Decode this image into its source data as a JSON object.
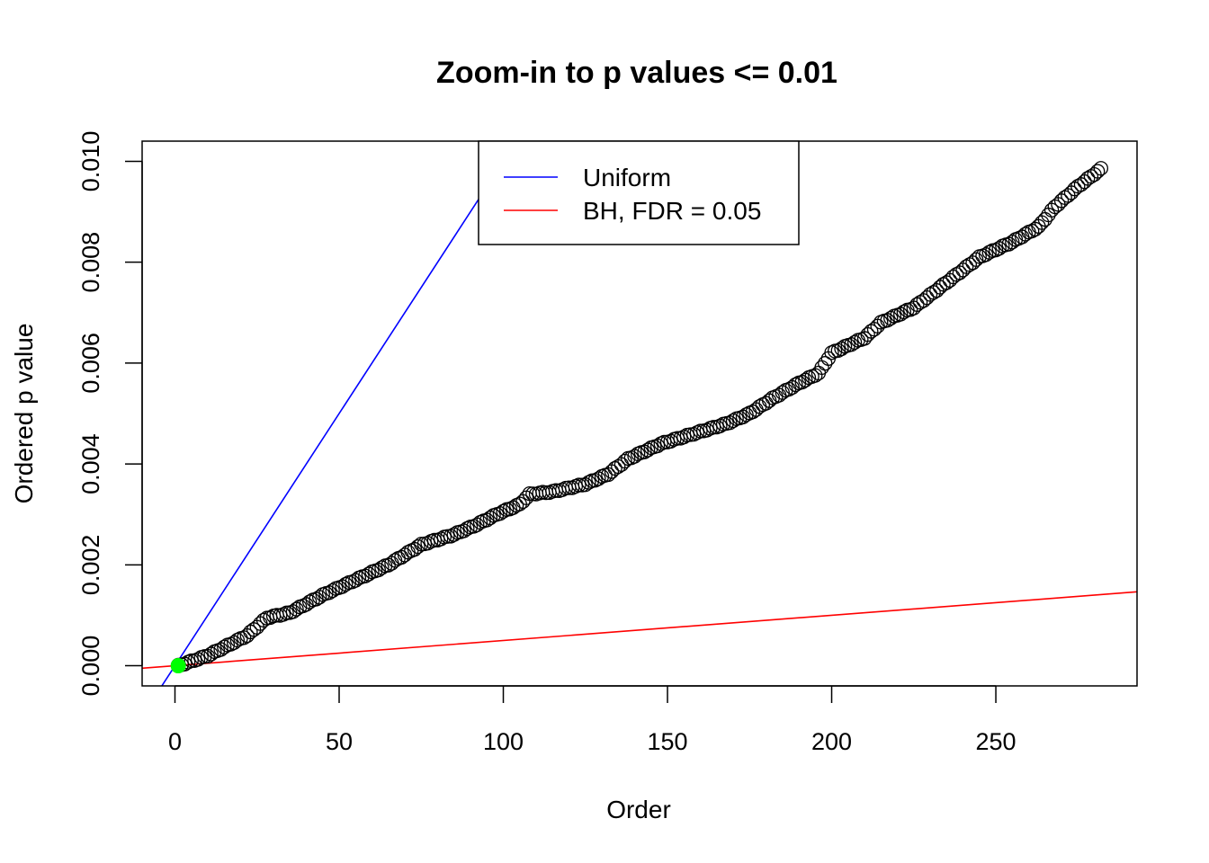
{
  "chart_data": {
    "type": "scatter",
    "title": "Zoom-in to p values <= 0.01",
    "xlabel": "Order",
    "ylabel": "Ordered p value",
    "xlim": [
      -10,
      293
    ],
    "ylim": [
      -0.0004,
      0.0104
    ],
    "x_ticks": [
      0,
      50,
      100,
      150,
      200,
      250
    ],
    "x_tick_labels": [
      "0",
      "50",
      "100",
      "150",
      "200",
      "250"
    ],
    "y_ticks": [
      0.0,
      0.002,
      0.004,
      0.006,
      0.008,
      0.01
    ],
    "y_tick_labels": [
      "0.000",
      "0.002",
      "0.004",
      "0.006",
      "0.008",
      "0.010"
    ],
    "grid": false,
    "legend": {
      "position": "top-center",
      "entries": [
        {
          "name": "Uniform",
          "color": "#0000ff"
        },
        {
          "name": "BH, FDR = 0.05",
          "color": "#ff0000"
        }
      ]
    },
    "reference_lines": [
      {
        "name": "Uniform",
        "color": "#0000ff",
        "intercept": 0.0,
        "slope": 0.0001
      },
      {
        "name": "BH, FDR = 0.05",
        "color": "#ff0000",
        "intercept": 0.0,
        "slope": 5e-06
      }
    ],
    "highlighted_point": {
      "x": 1,
      "y": 0.0,
      "color": "#00ff00"
    },
    "point_style": {
      "shape": "open-circle",
      "color": "#000000",
      "n": 282
    },
    "curve_knots": [
      {
        "x": 1,
        "y": 0.0
      },
      {
        "x": 10,
        "y": 0.0002
      },
      {
        "x": 16,
        "y": 0.0004
      },
      {
        "x": 22,
        "y": 0.0006
      },
      {
        "x": 28,
        "y": 0.00095
      },
      {
        "x": 35,
        "y": 0.00105
      },
      {
        "x": 45,
        "y": 0.0014
      },
      {
        "x": 55,
        "y": 0.0017
      },
      {
        "x": 65,
        "y": 0.002
      },
      {
        "x": 75,
        "y": 0.0024
      },
      {
        "x": 85,
        "y": 0.0026
      },
      {
        "x": 92,
        "y": 0.0028
      },
      {
        "x": 98,
        "y": 0.003
      },
      {
        "x": 105,
        "y": 0.0032
      },
      {
        "x": 108,
        "y": 0.0034
      },
      {
        "x": 115,
        "y": 0.00345
      },
      {
        "x": 125,
        "y": 0.0036
      },
      {
        "x": 132,
        "y": 0.0038
      },
      {
        "x": 138,
        "y": 0.0041
      },
      {
        "x": 148,
        "y": 0.0044
      },
      {
        "x": 158,
        "y": 0.0046
      },
      {
        "x": 168,
        "y": 0.0048
      },
      {
        "x": 175,
        "y": 0.005
      },
      {
        "x": 182,
        "y": 0.0053
      },
      {
        "x": 190,
        "y": 0.0056
      },
      {
        "x": 196,
        "y": 0.0058
      },
      {
        "x": 200,
        "y": 0.0062
      },
      {
        "x": 210,
        "y": 0.0065
      },
      {
        "x": 215,
        "y": 0.0068
      },
      {
        "x": 225,
        "y": 0.0071
      },
      {
        "x": 235,
        "y": 0.0076
      },
      {
        "x": 245,
        "y": 0.0081
      },
      {
        "x": 255,
        "y": 0.0084
      },
      {
        "x": 263,
        "y": 0.0087
      },
      {
        "x": 268,
        "y": 0.0091
      },
      {
        "x": 275,
        "y": 0.0095
      },
      {
        "x": 282,
        "y": 0.00985
      }
    ]
  }
}
